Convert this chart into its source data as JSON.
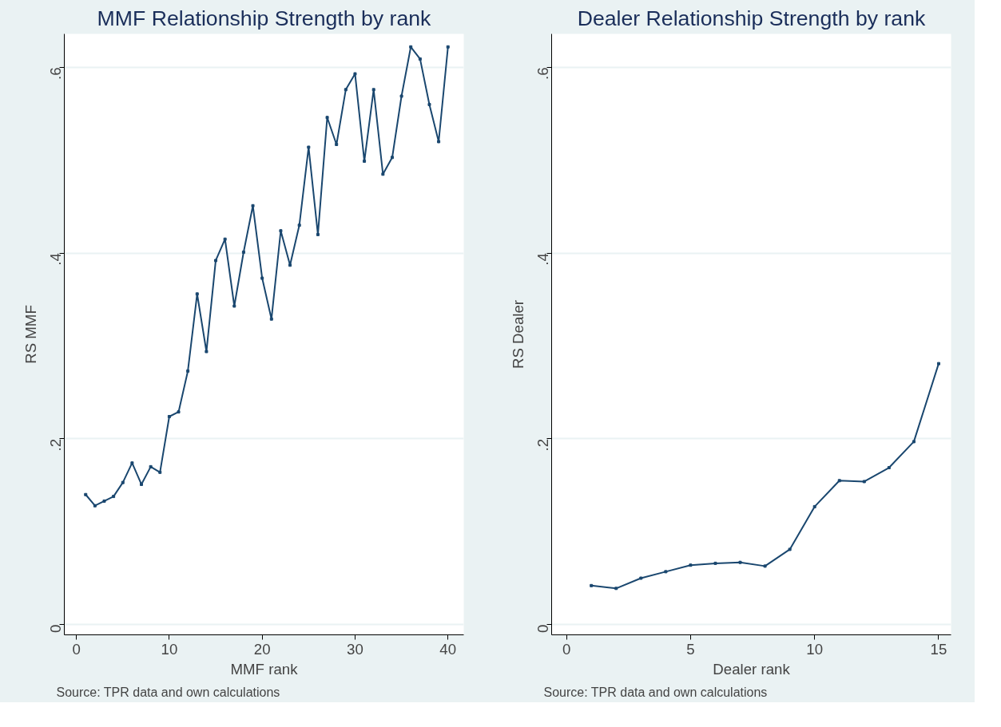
{
  "chart_data": [
    {
      "type": "line",
      "title": "MMF Relationship Strength by rank",
      "xlabel": "MMF rank",
      "ylabel": "RS MMF",
      "annotations": [
        "Source: TPR data and own calculations"
      ],
      "x": [
        1,
        2,
        3,
        4,
        5,
        6,
        7,
        8,
        9,
        10,
        11,
        12,
        13,
        14,
        15,
        16,
        17,
        18,
        19,
        20,
        21,
        22,
        23,
        24,
        25,
        26,
        27,
        28,
        29,
        30,
        31,
        32,
        33,
        34,
        35,
        36,
        37,
        38,
        39,
        40
      ],
      "series": [
        {
          "color": "#1a476f",
          "values": [
            0.14,
            0.128,
            0.133,
            0.138,
            0.153,
            0.174,
            0.151,
            0.17,
            0.164,
            0.224,
            0.229,
            0.273,
            0.356,
            0.294,
            0.392,
            0.415,
            0.343,
            0.401,
            0.451,
            0.373,
            0.329,
            0.424,
            0.387,
            0.43,
            0.514,
            0.42,
            0.546,
            0.517,
            0.576,
            0.593,
            0.499,
            0.576,
            0.485,
            0.503,
            0.569,
            0.622,
            0.609,
            0.56,
            0.52,
            0.622
          ]
        }
      ],
      "xlim": [
        -1.3,
        41.7
      ],
      "ylim": [
        -0.011,
        0.636
      ],
      "xticks": [
        0,
        10,
        20,
        30,
        40
      ],
      "yticks": [
        {
          "value": 0,
          "label": "0"
        },
        {
          "value": 0.2,
          "label": ".2"
        },
        {
          "value": 0.4,
          "label": ".4"
        },
        {
          "value": 0.6,
          "label": ".6"
        }
      ],
      "grid": "y",
      "marker": "square",
      "line_style": "solid"
    },
    {
      "type": "line",
      "title": "Dealer Relationship Strength by rank",
      "xlabel": "Dealer rank",
      "ylabel": "RS Dealer",
      "annotations": [
        "Source: TPR data and own calculations"
      ],
      "x": [
        1,
        2,
        3,
        4,
        5,
        6,
        7,
        8,
        9,
        10,
        11,
        12,
        13,
        14,
        15
      ],
      "series": [
        {
          "color": "#1a476f",
          "values": [
            0.042,
            0.039,
            0.05,
            0.057,
            0.064,
            0.066,
            0.067,
            0.063,
            0.081,
            0.127,
            0.155,
            0.154,
            0.169,
            0.197,
            0.281
          ]
        }
      ],
      "xlim": [
        -0.6,
        15.5
      ],
      "ylim": [
        -0.011,
        0.636
      ],
      "xticks": [
        0,
        5,
        10,
        15
      ],
      "yticks": [
        {
          "value": 0,
          "label": "0"
        },
        {
          "value": 0.2,
          "label": ".2"
        },
        {
          "value": 0.4,
          "label": ".4"
        },
        {
          "value": 0.6,
          "label": ".6"
        }
      ],
      "grid": "y",
      "marker": "square",
      "line_style": "solid"
    }
  ]
}
